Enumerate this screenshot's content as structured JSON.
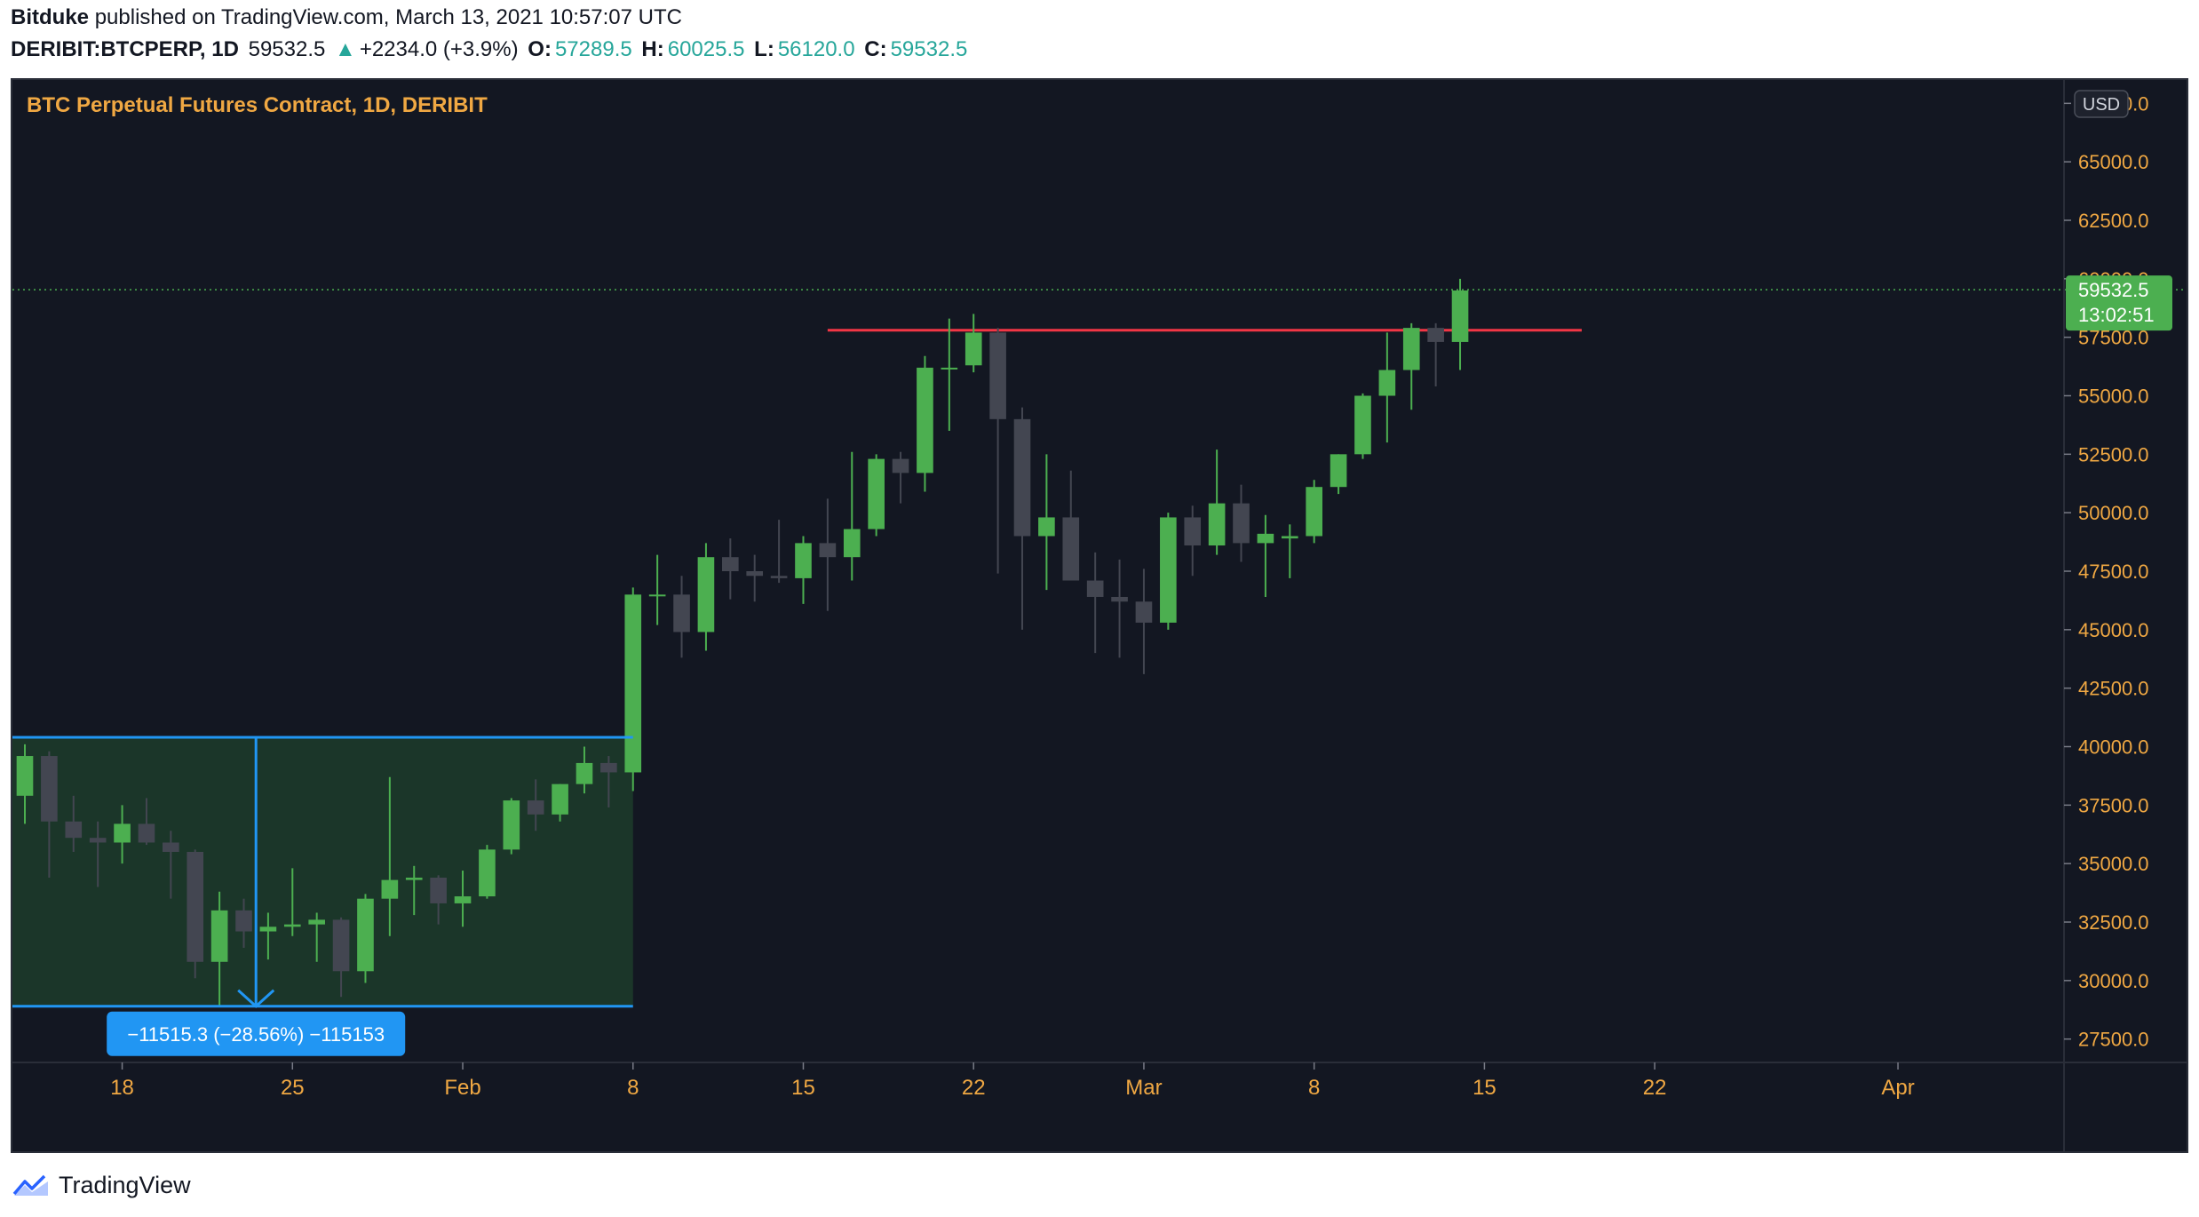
{
  "header": {
    "author": "Bitduke",
    "published_text": "published on TradingView.com, March 13, 2021 10:57:07 UTC",
    "symbol": "DERIBIT:BTCPERP, 1D",
    "last": "59532.5",
    "change_icon": "triangle-up-icon",
    "change": "+2234.0 (+3.9%)",
    "o_label": "O:",
    "o_value": "57289.5",
    "h_label": "H:",
    "h_value": "60025.5",
    "l_label": "L:",
    "l_value": "56120.0",
    "c_label": "C:",
    "c_value": "59532.5"
  },
  "footer": {
    "brand": "TradingView",
    "logo_icon": "tradingview-logo-icon"
  },
  "colors": {
    "background": "#131722",
    "up": "#4caf50",
    "down": "#434651",
    "text": "#f0a843",
    "axis_text": "#f0a843",
    "resistance": "#f23645",
    "measure": "#2196f3",
    "measure_fill": "#1d3a2a",
    "price_tag": "#4caf50"
  },
  "chart_data": {
    "type": "candlestick",
    "title": "BTC Perpetual Futures Contract, 1D, DERIBIT",
    "currency": "USD",
    "ylim": [
      26500,
      68500
    ],
    "y_ticks": [
      "27500.0",
      "30000.0",
      "32500.0",
      "35000.0",
      "37500.0",
      "40000.0",
      "42500.0",
      "45000.0",
      "47500.0",
      "50000.0",
      "52500.0",
      "55000.0",
      "57500.0",
      "60000.0",
      "62500.0",
      "65000.0",
      "67500.0"
    ],
    "x_labels": [
      {
        "label": "18",
        "date": "2021-01-18"
      },
      {
        "label": "25",
        "date": "2021-01-25"
      },
      {
        "label": "Feb",
        "date": "2021-02-01"
      },
      {
        "label": "8",
        "date": "2021-02-08"
      },
      {
        "label": "15",
        "date": "2021-02-15"
      },
      {
        "label": "22",
        "date": "2021-02-22"
      },
      {
        "label": "Mar",
        "date": "2021-03-01"
      },
      {
        "label": "8",
        "date": "2021-03-08"
      },
      {
        "label": "15",
        "date": "2021-03-15"
      },
      {
        "label": "22",
        "date": "2021-03-22"
      },
      {
        "label": "Apr",
        "date": "2021-04-01"
      }
    ],
    "x_start": "2021-01-14",
    "x_end": "2021-04-06",
    "candles": [
      {
        "d": "2021-01-14",
        "o": 37900,
        "h": 40100,
        "l": 36700,
        "c": 39600
      },
      {
        "d": "2021-01-15",
        "o": 39600,
        "h": 39800,
        "l": 34400,
        "c": 36800
      },
      {
        "d": "2021-01-16",
        "o": 36800,
        "h": 37900,
        "l": 35500,
        "c": 36100
      },
      {
        "d": "2021-01-17",
        "o": 36100,
        "h": 36800,
        "l": 34000,
        "c": 35900
      },
      {
        "d": "2021-01-18",
        "o": 35900,
        "h": 37500,
        "l": 35000,
        "c": 36700
      },
      {
        "d": "2021-01-19",
        "o": 36700,
        "h": 37800,
        "l": 35800,
        "c": 35900
      },
      {
        "d": "2021-01-20",
        "o": 35900,
        "h": 36400,
        "l": 33500,
        "c": 35500
      },
      {
        "d": "2021-01-21",
        "o": 35500,
        "h": 35600,
        "l": 30100,
        "c": 30800
      },
      {
        "d": "2021-01-22",
        "o": 30800,
        "h": 33800,
        "l": 28900,
        "c": 33000
      },
      {
        "d": "2021-01-23",
        "o": 33000,
        "h": 33500,
        "l": 31400,
        "c": 32100
      },
      {
        "d": "2021-01-24",
        "o": 32100,
        "h": 32900,
        "l": 30900,
        "c": 32300
      },
      {
        "d": "2021-01-25",
        "o": 32300,
        "h": 34800,
        "l": 31900,
        "c": 32400
      },
      {
        "d": "2021-01-26",
        "o": 32400,
        "h": 32900,
        "l": 30800,
        "c": 32600
      },
      {
        "d": "2021-01-27",
        "o": 32600,
        "h": 32700,
        "l": 29300,
        "c": 30400
      },
      {
        "d": "2021-01-28",
        "o": 30400,
        "h": 33700,
        "l": 29900,
        "c": 33500
      },
      {
        "d": "2021-01-29",
        "o": 33500,
        "h": 38700,
        "l": 31900,
        "c": 34300
      },
      {
        "d": "2021-01-30",
        "o": 34300,
        "h": 34900,
        "l": 32800,
        "c": 34400
      },
      {
        "d": "2021-01-31",
        "o": 34400,
        "h": 34500,
        "l": 32400,
        "c": 33300
      },
      {
        "d": "2021-02-01",
        "o": 33300,
        "h": 34700,
        "l": 32300,
        "c": 33600
      },
      {
        "d": "2021-02-02",
        "o": 33600,
        "h": 35800,
        "l": 33500,
        "c": 35600
      },
      {
        "d": "2021-02-03",
        "o": 35600,
        "h": 37800,
        "l": 35400,
        "c": 37700
      },
      {
        "d": "2021-02-04",
        "o": 37700,
        "h": 38600,
        "l": 36400,
        "c": 37100
      },
      {
        "d": "2021-02-05",
        "o": 37100,
        "h": 38400,
        "l": 36800,
        "c": 38400
      },
      {
        "d": "2021-02-06",
        "o": 38400,
        "h": 40000,
        "l": 38000,
        "c": 39300
      },
      {
        "d": "2021-02-07",
        "o": 39300,
        "h": 39600,
        "l": 37400,
        "c": 38900
      },
      {
        "d": "2021-02-08",
        "o": 38900,
        "h": 46800,
        "l": 38100,
        "c": 46500
      },
      {
        "d": "2021-02-09",
        "o": 46500,
        "h": 48200,
        "l": 45200,
        "c": 46500
      },
      {
        "d": "2021-02-10",
        "o": 46500,
        "h": 47300,
        "l": 43800,
        "c": 44900
      },
      {
        "d": "2021-02-11",
        "o": 44900,
        "h": 48700,
        "l": 44100,
        "c": 48100
      },
      {
        "d": "2021-02-12",
        "o": 48100,
        "h": 48900,
        "l": 46300,
        "c": 47500
      },
      {
        "d": "2021-02-13",
        "o": 47500,
        "h": 48200,
        "l": 46200,
        "c": 47300
      },
      {
        "d": "2021-02-14",
        "o": 47300,
        "h": 49700,
        "l": 47000,
        "c": 47200
      },
      {
        "d": "2021-02-15",
        "o": 47200,
        "h": 49000,
        "l": 46100,
        "c": 48700
      },
      {
        "d": "2021-02-16",
        "o": 48700,
        "h": 50600,
        "l": 45800,
        "c": 48100
      },
      {
        "d": "2021-02-17",
        "o": 48100,
        "h": 52600,
        "l": 47100,
        "c": 49300
      },
      {
        "d": "2021-02-18",
        "o": 49300,
        "h": 52500,
        "l": 49000,
        "c": 52300
      },
      {
        "d": "2021-02-19",
        "o": 52300,
        "h": 52600,
        "l": 50400,
        "c": 51700
      },
      {
        "d": "2021-02-20",
        "o": 51700,
        "h": 56700,
        "l": 50900,
        "c": 56200
      },
      {
        "d": "2021-02-21",
        "o": 56200,
        "h": 58300,
        "l": 53500,
        "c": 56200
      },
      {
        "d": "2021-02-22",
        "o": 56300,
        "h": 58500,
        "l": 56000,
        "c": 57700
      },
      {
        "d": "2021-02-23",
        "o": 57700,
        "h": 57900,
        "l": 47400,
        "c": 54000
      },
      {
        "d": "2021-02-24",
        "o": 54000,
        "h": 54500,
        "l": 45000,
        "c": 49000
      },
      {
        "d": "2021-02-25",
        "o": 49000,
        "h": 52500,
        "l": 46700,
        "c": 49800
      },
      {
        "d": "2021-02-26",
        "o": 49800,
        "h": 51800,
        "l": 47500,
        "c": 47100
      },
      {
        "d": "2021-02-27",
        "o": 47100,
        "h": 48300,
        "l": 44000,
        "c": 46400
      },
      {
        "d": "2021-02-28",
        "o": 46400,
        "h": 48000,
        "l": 43800,
        "c": 46200
      },
      {
        "d": "2021-03-01",
        "o": 46200,
        "h": 47600,
        "l": 43100,
        "c": 45300
      },
      {
        "d": "2021-03-02",
        "o": 45300,
        "h": 50000,
        "l": 45000,
        "c": 49800
      },
      {
        "d": "2021-03-03",
        "o": 49800,
        "h": 50300,
        "l": 47300,
        "c": 48600
      },
      {
        "d": "2021-03-04",
        "o": 48600,
        "h": 52700,
        "l": 48200,
        "c": 50400
      },
      {
        "d": "2021-03-05",
        "o": 50400,
        "h": 51200,
        "l": 47900,
        "c": 48700
      },
      {
        "d": "2021-03-06",
        "o": 48700,
        "h": 49900,
        "l": 46400,
        "c": 49100
      },
      {
        "d": "2021-03-07",
        "o": 48900,
        "h": 49500,
        "l": 47200,
        "c": 49000
      },
      {
        "d": "2021-03-08",
        "o": 49000,
        "h": 51400,
        "l": 48700,
        "c": 51100
      },
      {
        "d": "2021-03-09",
        "o": 51100,
        "h": 52500,
        "l": 50800,
        "c": 52500
      },
      {
        "d": "2021-03-10",
        "o": 52500,
        "h": 55100,
        "l": 52300,
        "c": 55000
      },
      {
        "d": "2021-03-11",
        "o": 55000,
        "h": 57700,
        "l": 53000,
        "c": 56100
      },
      {
        "d": "2021-03-12",
        "o": 56100,
        "h": 58100,
        "l": 54400,
        "c": 57900
      },
      {
        "d": "2021-03-13",
        "o": 57900,
        "h": 58100,
        "l": 55400,
        "c": 57300
      },
      {
        "d": "2021-03-14",
        "o": 57300,
        "h": 60000,
        "l": 56100,
        "c": 59500
      }
    ],
    "current_price": {
      "value": 59532.5,
      "label": "59532.5",
      "countdown": "13:02:51"
    },
    "resistance_line": {
      "value": 57800,
      "start": "2021-02-16",
      "end": "2021-03-19"
    },
    "measure": {
      "label": "−11515.3 (−28.56%) −115153",
      "top": 40400,
      "bottom": 28900,
      "start": "2021-01-14",
      "end": "2021-02-08",
      "arrow_date": "2021-01-24"
    }
  }
}
